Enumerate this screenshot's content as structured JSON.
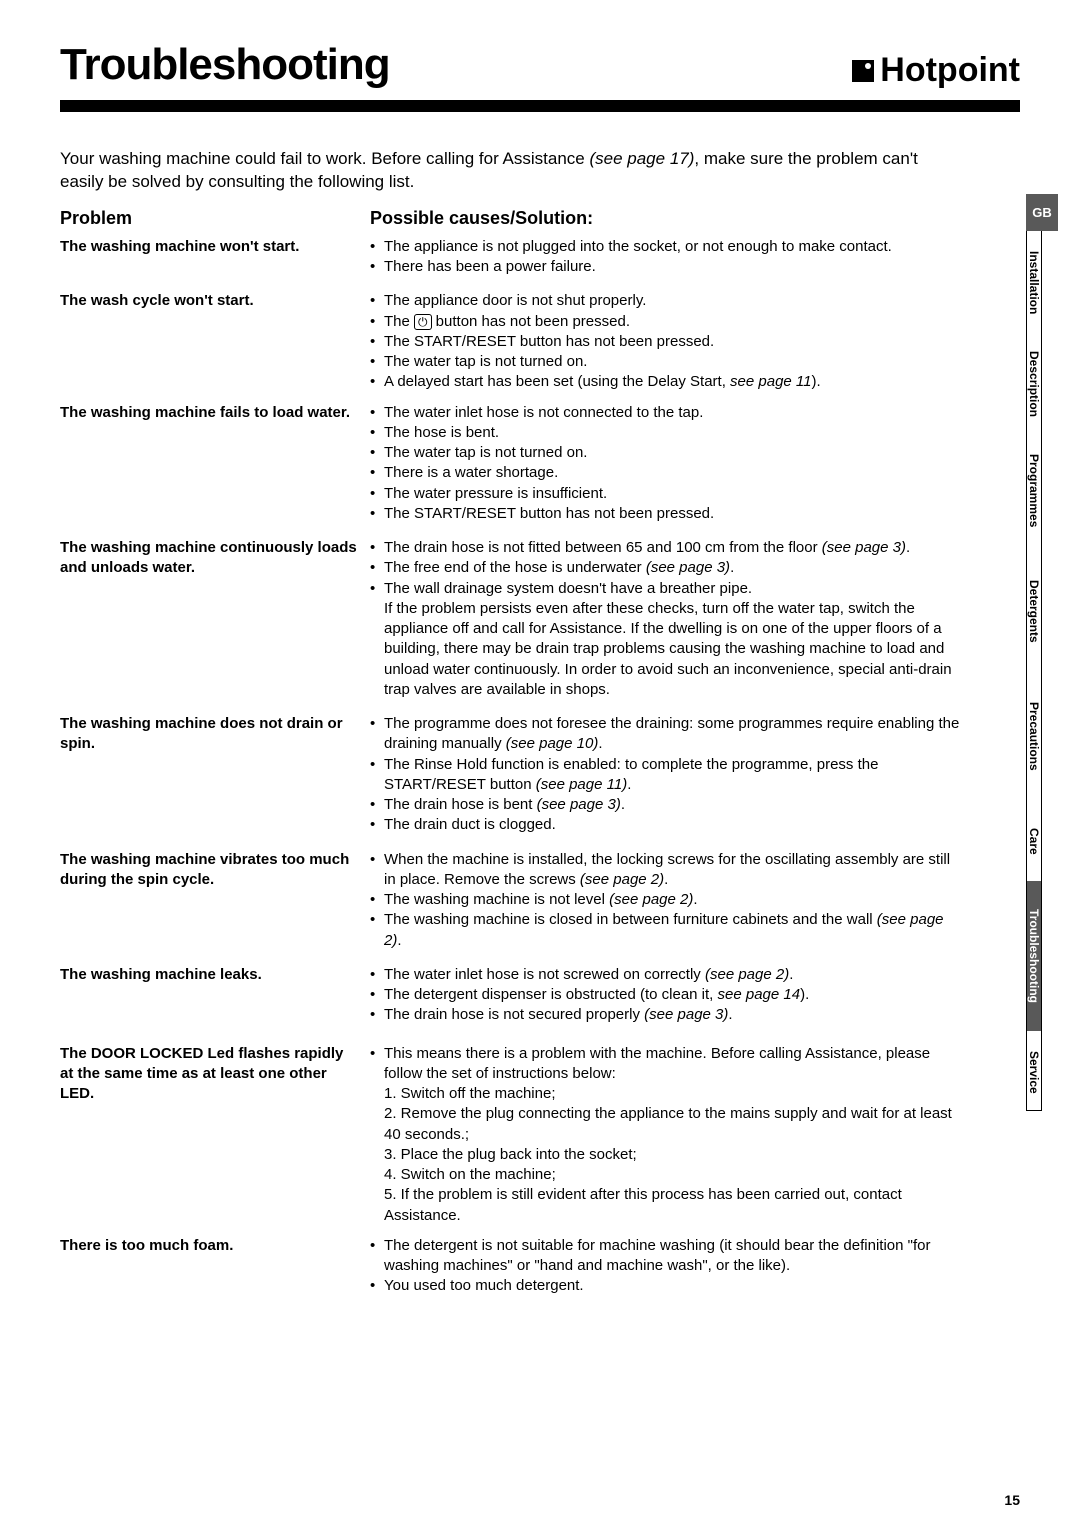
{
  "page": {
    "title": "Troubleshooting",
    "brand": "Hotpoint",
    "page_number": "15"
  },
  "intro": {
    "text_a": "Your washing machine could fail to work. Before calling for Assistance ",
    "ref": "(see page 17)",
    "text_b": ", make sure the problem can't easily be solved by consulting the following list."
  },
  "headings": {
    "problem": "Problem",
    "solution": "Possible causes/Solution:"
  },
  "tabs": {
    "gb": "GB",
    "installation": "Installation",
    "description": "Description",
    "programmes": "Programmes",
    "detergents": "Detergents",
    "precautions": "Precautions",
    "care": "Care",
    "troubleshooting": "Troubleshooting",
    "service": "Service"
  },
  "rows": [
    {
      "problem": "The washing machine won't start.",
      "bullets": [
        {
          "text": "The appliance is not plugged into the socket, or not enough to make contact."
        },
        {
          "text": "There has been a power failure."
        }
      ],
      "gap": 14
    },
    {
      "problem": "The wash cycle won't start.",
      "bullets": [
        {
          "text": "The appliance door is not shut properly."
        },
        {
          "pre": "The ",
          "btn": "⏻",
          "post": " button has not been pressed."
        },
        {
          "text": "The START/RESET button has not been pressed."
        },
        {
          "text": "The water tap is not turned on."
        },
        {
          "pre": "A delayed start has been set (using the Delay Start, ",
          "ital": "see page 11",
          "post": ")."
        }
      ],
      "gap": 10
    },
    {
      "problem": "The washing machine fails to load water.",
      "bullets": [
        {
          "text": "The water inlet hose is not connected to the tap."
        },
        {
          "text": "The hose is bent."
        },
        {
          "text": "The water tap is not turned on."
        },
        {
          "text": "There is a water shortage."
        },
        {
          "text": "The water pressure is insufficient."
        },
        {
          "text": "The START/RESET button has not been pressed."
        }
      ],
      "gap": 14
    },
    {
      "problem": "The washing machine continuously loads and unloads water.",
      "bullets": [
        {
          "pre": "The drain hose is not fitted between 65 and 100 cm from the floor ",
          "ital": "(see page 3)",
          "post": "."
        },
        {
          "pre": "The free end of the hose is underwater ",
          "ital": "(see page 3)",
          "post": "."
        },
        {
          "text": "The wall drainage system doesn't have a breather pipe."
        }
      ],
      "note": "If the problem persists even after these checks, turn off the water tap, switch the appliance off and call for Assistance. If the dwelling is on one of the upper floors of a building, there may be drain trap problems causing the washing machine to load and unload water continuously. In order to avoid such an inconvenience, special anti-drain trap valves are available in shops.",
      "gap": 14
    },
    {
      "problem": "The washing machine does not drain or spin.",
      "bullets": [
        {
          "pre": "The programme does not foresee the draining: some programmes require enabling the draining manually ",
          "ital": "(see page 10)",
          "post": "."
        },
        {
          "pre": "The Rinse Hold function is enabled: to complete the programme, press the START/RESET button ",
          "ital": "(see page 11)",
          "post": "."
        },
        {
          "pre": "The drain hose is bent ",
          "ital": "(see page 3)",
          "post": "."
        },
        {
          "text": "The drain duct is clogged."
        }
      ],
      "gap": 14
    },
    {
      "problem": "The washing machine vibrates too much during the spin cycle.",
      "bullets": [
        {
          "pre": "When the machine is installed, the locking screws for the oscillating assembly are still in place. Remove the screws ",
          "ital": "(see page 2)",
          "post": "."
        },
        {
          "pre": "The washing machine is not level ",
          "ital": "(see page 2)",
          "post": "."
        },
        {
          "pre": "The washing machine is closed in between furniture cabinets and the wall ",
          "ital": "(see page 2)",
          "post": "."
        }
      ],
      "gap": 14
    },
    {
      "problem": "The washing machine leaks.",
      "bullets": [
        {
          "pre": "The water inlet hose is not screwed on correctly ",
          "ital": "(see page 2)",
          "post": "."
        },
        {
          "pre": "The detergent dispenser is obstructed (to clean it, ",
          "ital": "see page 14",
          "post": ")."
        },
        {
          "pre": "The drain hose is not secured properly ",
          "ital": "(see page 3)",
          "post": "."
        }
      ],
      "gap": 18
    },
    {
      "problem": "The DOOR LOCKED Led flashes rapidly at the same time as at least one other LED.",
      "bullets": [
        {
          "text": "This means there is a problem with the machine. Before calling Assistance, please follow the set of instructions below:"
        }
      ],
      "steps": [
        "1. Switch off the machine;",
        "2. Remove the plug connecting the appliance to the mains supply and wait for at least 40 seconds.;",
        "3. Place the plug back into the socket;",
        "4. Switch on the machine;",
        "5. If the problem is still evident after this process has been carried out, contact Assistance."
      ],
      "gap": 10
    },
    {
      "problem": "There is too much foam.",
      "bullets": [
        {
          "text": "The detergent is not suitable for machine washing (it should bear the definition \"for washing machines\" or \"hand and machine wash\",  or the like)."
        },
        {
          "text": "You used too much detergent."
        }
      ],
      "gap": 0
    }
  ]
}
